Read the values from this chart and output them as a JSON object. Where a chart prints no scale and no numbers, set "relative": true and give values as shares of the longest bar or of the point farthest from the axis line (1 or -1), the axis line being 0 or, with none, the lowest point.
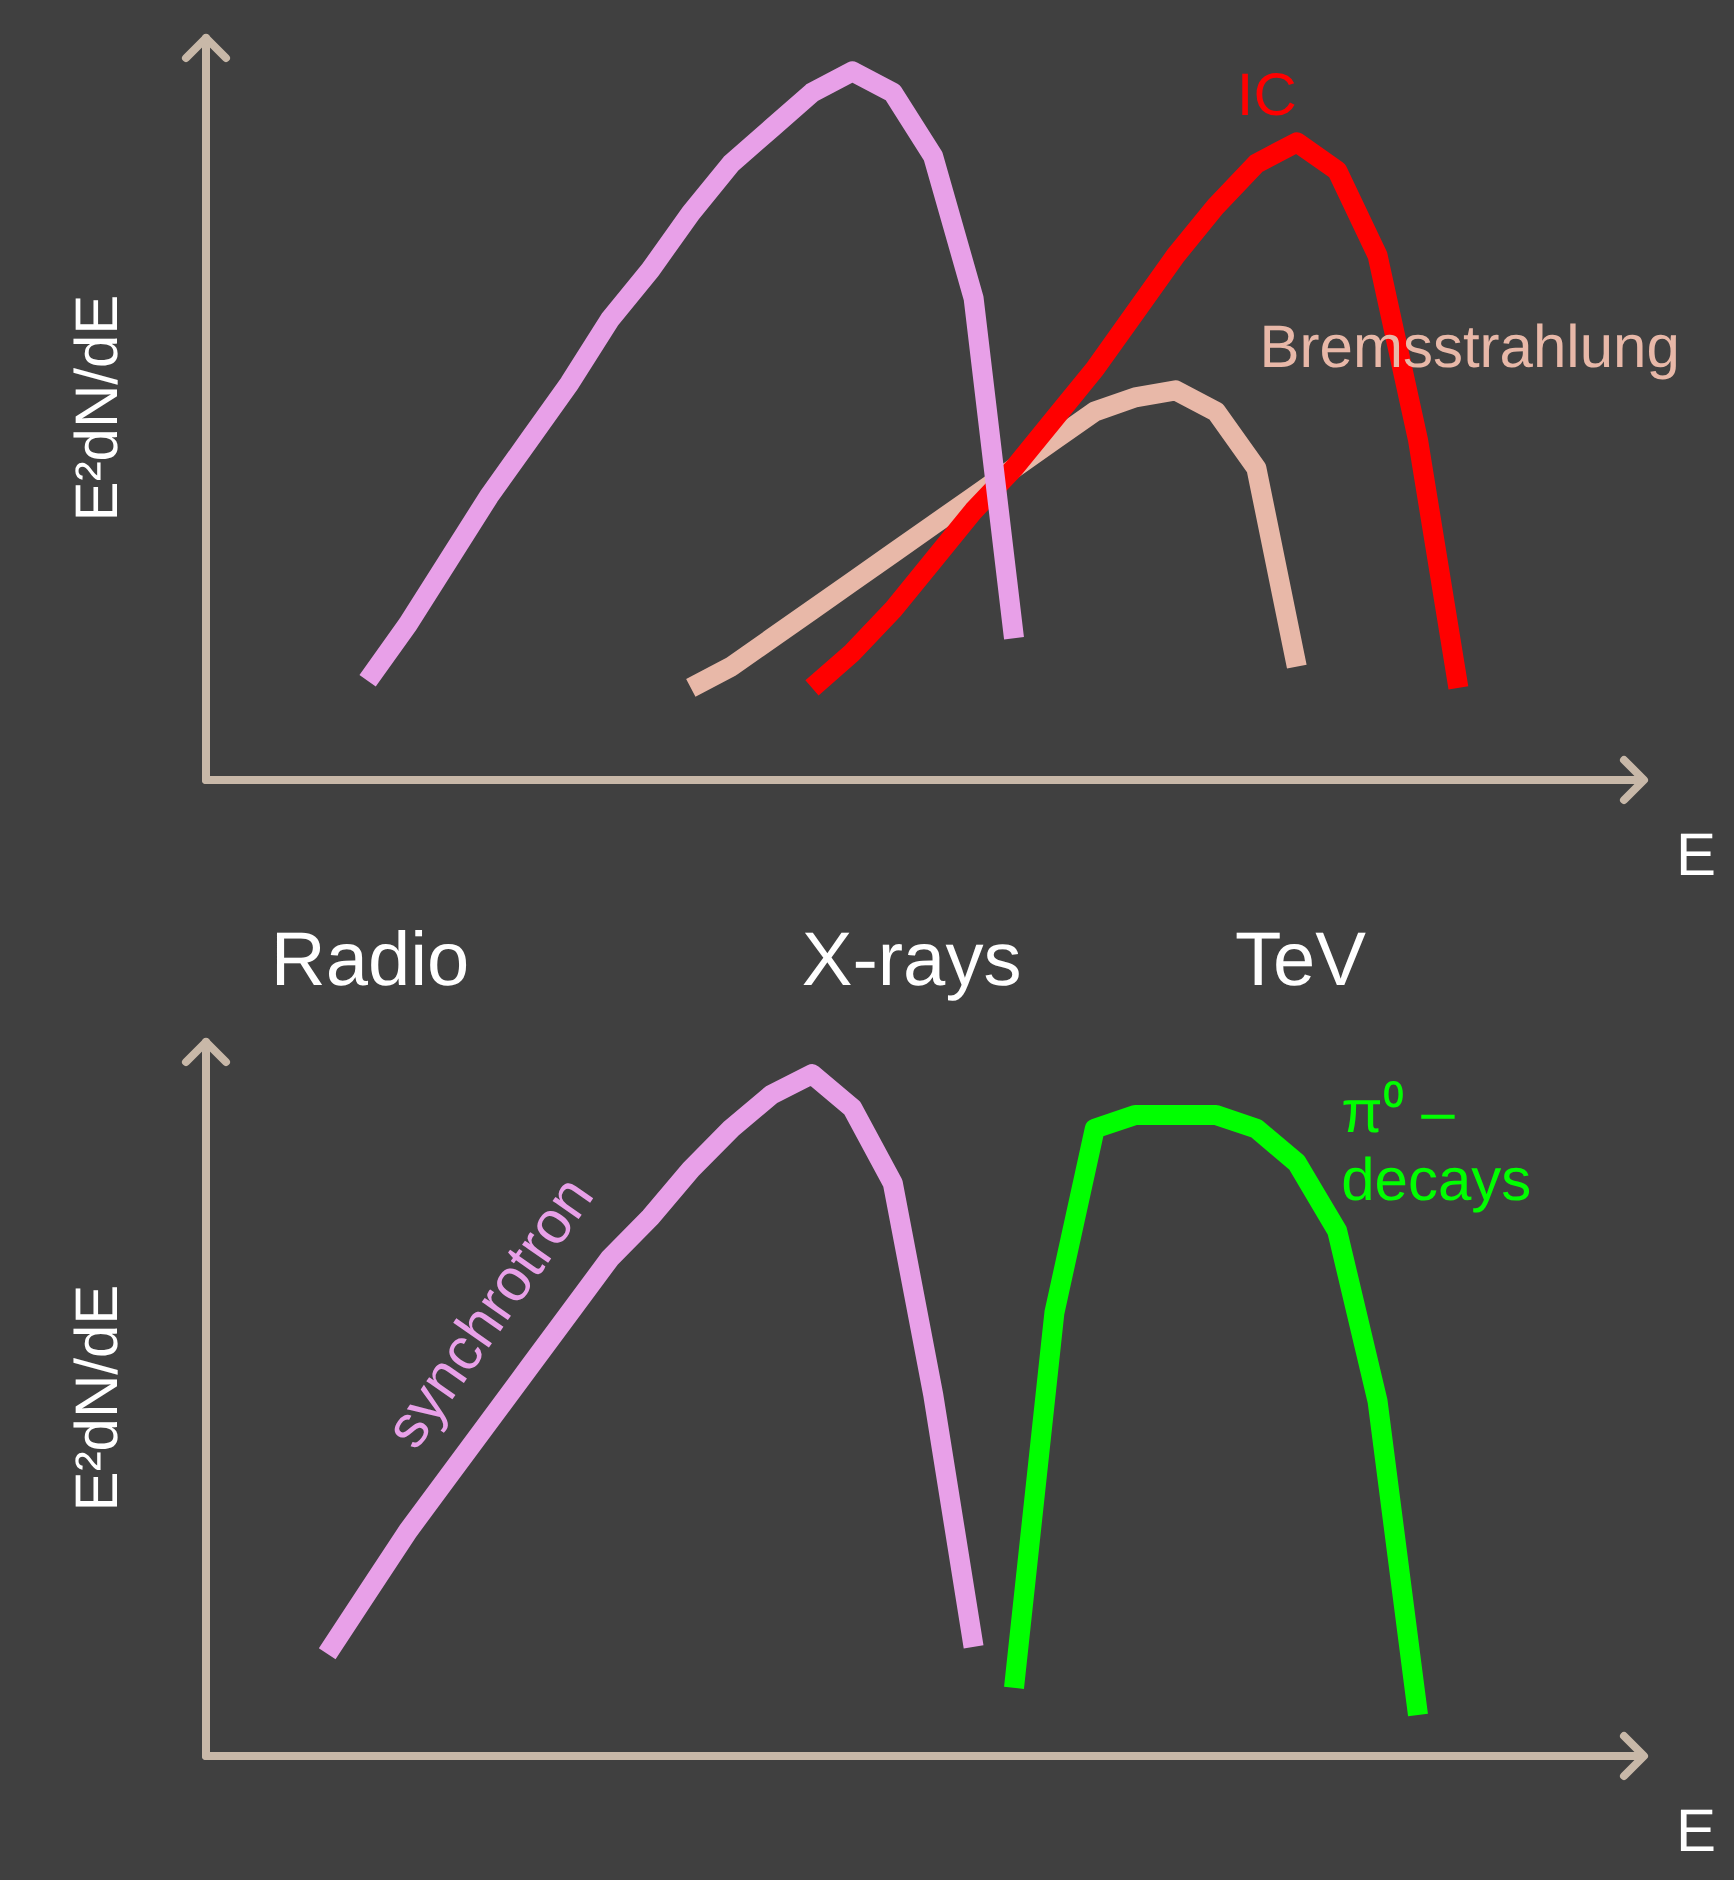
{
  "chart_data": [
    {
      "type": "line",
      "relative": true,
      "ylabel": "E²dN/dE",
      "xlabel": "E",
      "legend": false,
      "categories": [
        null,
        null,
        null,
        null,
        null,
        null,
        null,
        null,
        null,
        null,
        null,
        null,
        null,
        null,
        null,
        null,
        null,
        null,
        null,
        null,
        null,
        null,
        null,
        null,
        null,
        null,
        null,
        null,
        null,
        null,
        null,
        null,
        null,
        null,
        null,
        null
      ],
      "series": [
        {
          "color": "#e8a0e8",
          "values": [
            null,
            null,
            null,
            null,
            0.14,
            0.22,
            0.31,
            0.4,
            0.48,
            0.56,
            0.65,
            0.72,
            0.8,
            0.87,
            0.92,
            0.97,
            1.0,
            0.97,
            0.88,
            0.68,
            0.2,
            null,
            null,
            null,
            null,
            null,
            null,
            null,
            null,
            null,
            null,
            null,
            null,
            null,
            null,
            null
          ]
        },
        {
          "name": "IC",
          "color": "#ff0000",
          "values": [
            null,
            null,
            null,
            null,
            null,
            null,
            null,
            null,
            null,
            null,
            null,
            null,
            null,
            null,
            null,
            0.13,
            0.18,
            0.24,
            0.31,
            0.38,
            0.44,
            0.51,
            0.58,
            0.66,
            0.74,
            0.81,
            0.87,
            0.9,
            0.86,
            0.74,
            0.48,
            0.13,
            null,
            null,
            null,
            null
          ]
        },
        {
          "name": "Bremsstrahlung",
          "color": "#e8b8a8",
          "values": [
            null,
            null,
            null,
            null,
            null,
            null,
            null,
            null,
            null,
            null,
            null,
            null,
            0.13,
            0.16,
            0.2,
            0.24,
            0.28,
            0.32,
            0.36,
            0.4,
            0.44,
            0.48,
            0.52,
            0.54,
            0.55,
            0.52,
            0.44,
            0.16,
            null,
            null,
            null,
            null,
            null,
            null,
            null,
            null
          ]
        }
      ]
    },
    {
      "type": "line",
      "relative": true,
      "ylabel": "E²dN/dE",
      "xlabel": "E",
      "legend": false,
      "annotations": [
        "Radio",
        "X-rays",
        "TeV"
      ],
      "categories": [
        null,
        null,
        null,
        null,
        null,
        null,
        null,
        null,
        null,
        null,
        null,
        null,
        null,
        null,
        null,
        null,
        null,
        null,
        null,
        null,
        null,
        null,
        null,
        null,
        null,
        null,
        null,
        null,
        null,
        null,
        null,
        null,
        null,
        null,
        null,
        null
      ],
      "series": [
        {
          "name": "synchrotron",
          "color": "#e8a0e8",
          "values": [
            null,
            null,
            null,
            0.15,
            0.24,
            0.33,
            0.41,
            0.49,
            0.57,
            0.65,
            0.73,
            0.79,
            0.86,
            0.92,
            0.97,
            1.0,
            0.95,
            0.84,
            0.53,
            0.16,
            null,
            null,
            null,
            null,
            null,
            null,
            null,
            null,
            null,
            null,
            null,
            null,
            null,
            null,
            null,
            null
          ]
        },
        {
          "name": "π⁰ – decays",
          "color": "#00ff00",
          "values": [
            null,
            null,
            null,
            null,
            null,
            null,
            null,
            null,
            null,
            null,
            null,
            null,
            null,
            null,
            null,
            null,
            null,
            null,
            null,
            null,
            0.1,
            0.65,
            0.92,
            0.94,
            0.94,
            0.94,
            0.92,
            0.87,
            0.77,
            0.52,
            0.06,
            null,
            null,
            null,
            null,
            null
          ]
        }
      ]
    }
  ]
}
